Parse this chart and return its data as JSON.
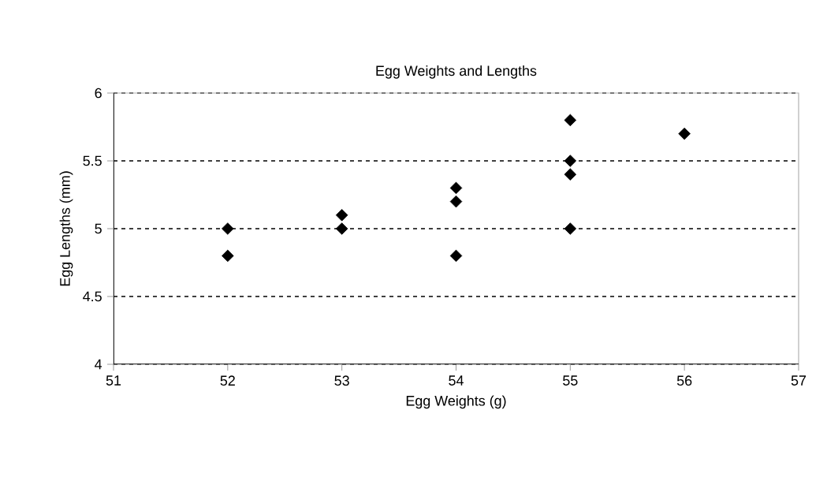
{
  "chart_data": {
    "type": "scatter",
    "title": "Egg Weights and Lengths",
    "xlabel": "Egg Weights (g)",
    "ylabel": "Egg Lengths (mm)",
    "x": [
      52,
      52,
      53,
      53,
      54,
      54,
      54,
      55,
      55,
      55,
      55,
      56
    ],
    "values": [
      5.0,
      4.8,
      5.1,
      5.0,
      5.3,
      5.2,
      4.8,
      5.8,
      5.5,
      5.4,
      5.0,
      5.7
    ],
    "color": "#000000",
    "marker": "diamond",
    "xlim": [
      51,
      57
    ],
    "xticks": [
      51,
      52,
      53,
      54,
      55,
      56,
      57
    ],
    "ylim": [
      4,
      6
    ],
    "yticks": [
      4,
      4.5,
      5,
      5.5,
      6
    ],
    "grid": "y"
  }
}
